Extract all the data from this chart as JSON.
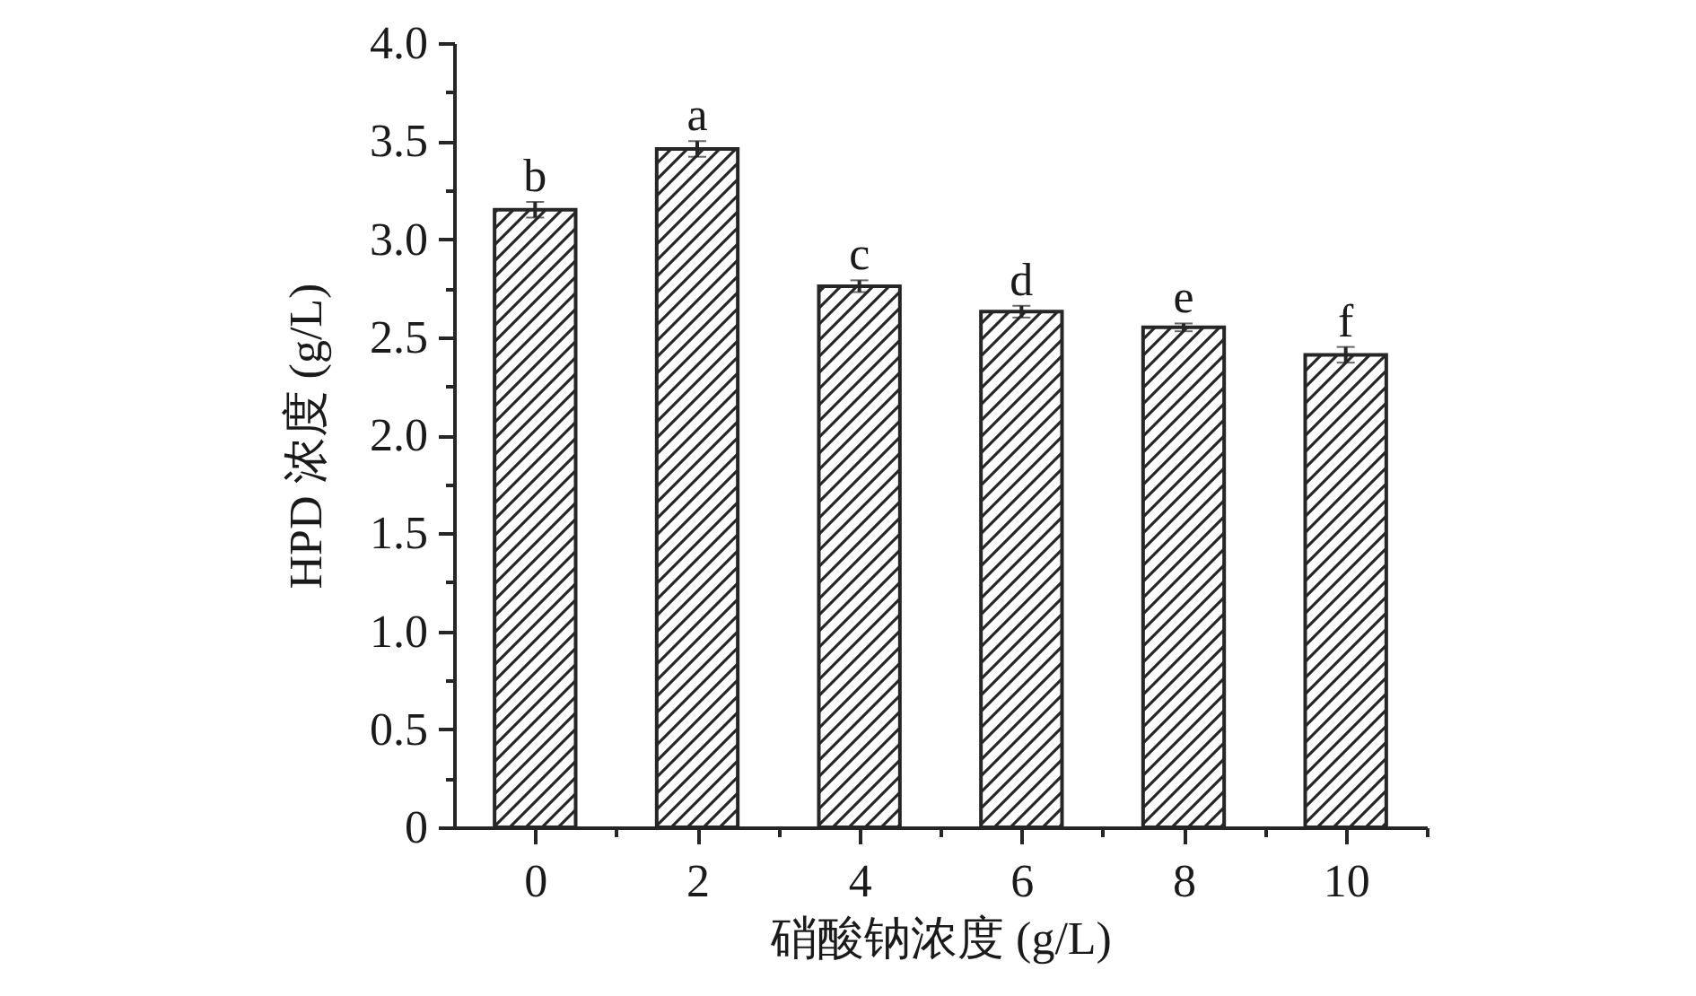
{
  "chart_data": {
    "type": "bar",
    "xlabel": "硝酸钠浓度 (g/L)",
    "ylabel": "HPD 浓度 (g/L)",
    "x": [
      0,
      2,
      4,
      6,
      8,
      10
    ],
    "values": [
      3.15,
      3.46,
      2.76,
      2.63,
      2.55,
      2.41
    ],
    "errors": [
      0.04,
      0.04,
      0.03,
      0.03,
      0.02,
      0.04
    ],
    "color": "#262626",
    "xlim": [
      -1,
      11
    ],
    "xticks": [
      0,
      2,
      4,
      6,
      8,
      10,
      {
        "value": 1,
        "label": null
      },
      {
        "value": 3,
        "label": null
      },
      {
        "value": 5,
        "label": null
      },
      {
        "value": 7,
        "label": null
      },
      {
        "value": 9,
        "label": null
      },
      {
        "value": 11,
        "label": null
      }
    ],
    "ylim": [
      0,
      4
    ],
    "yticks": [
      0,
      0.5,
      {
        "value": 1,
        "label": "1.0"
      },
      1.5,
      {
        "value": 2,
        "label": "2.0"
      },
      2.5,
      {
        "value": 3,
        "label": "3.0"
      },
      3.5,
      {
        "value": 4,
        "label": "4.0"
      },
      {
        "value": 0.25,
        "label": null
      },
      {
        "value": 0.75,
        "label": null
      },
      {
        "value": 1.25,
        "label": null
      },
      {
        "value": 1.75,
        "label": null
      },
      {
        "value": 2.25,
        "label": null
      },
      {
        "value": 2.75,
        "label": null
      },
      {
        "value": 3.25,
        "label": null
      },
      {
        "value": 3.75,
        "label": null
      }
    ],
    "annotations": [
      {
        "text": "b",
        "x": 0,
        "y": 3.19
      },
      {
        "text": "a",
        "x": 2,
        "y": 3.5
      },
      {
        "text": "c",
        "x": 4,
        "y": 2.79
      },
      {
        "text": "d",
        "x": 6,
        "y": 2.66
      },
      {
        "text": "e",
        "x": 8,
        "y": 2.57
      },
      {
        "text": "f",
        "x": 10,
        "y": 2.45
      }
    ],
    "grid": false
  }
}
